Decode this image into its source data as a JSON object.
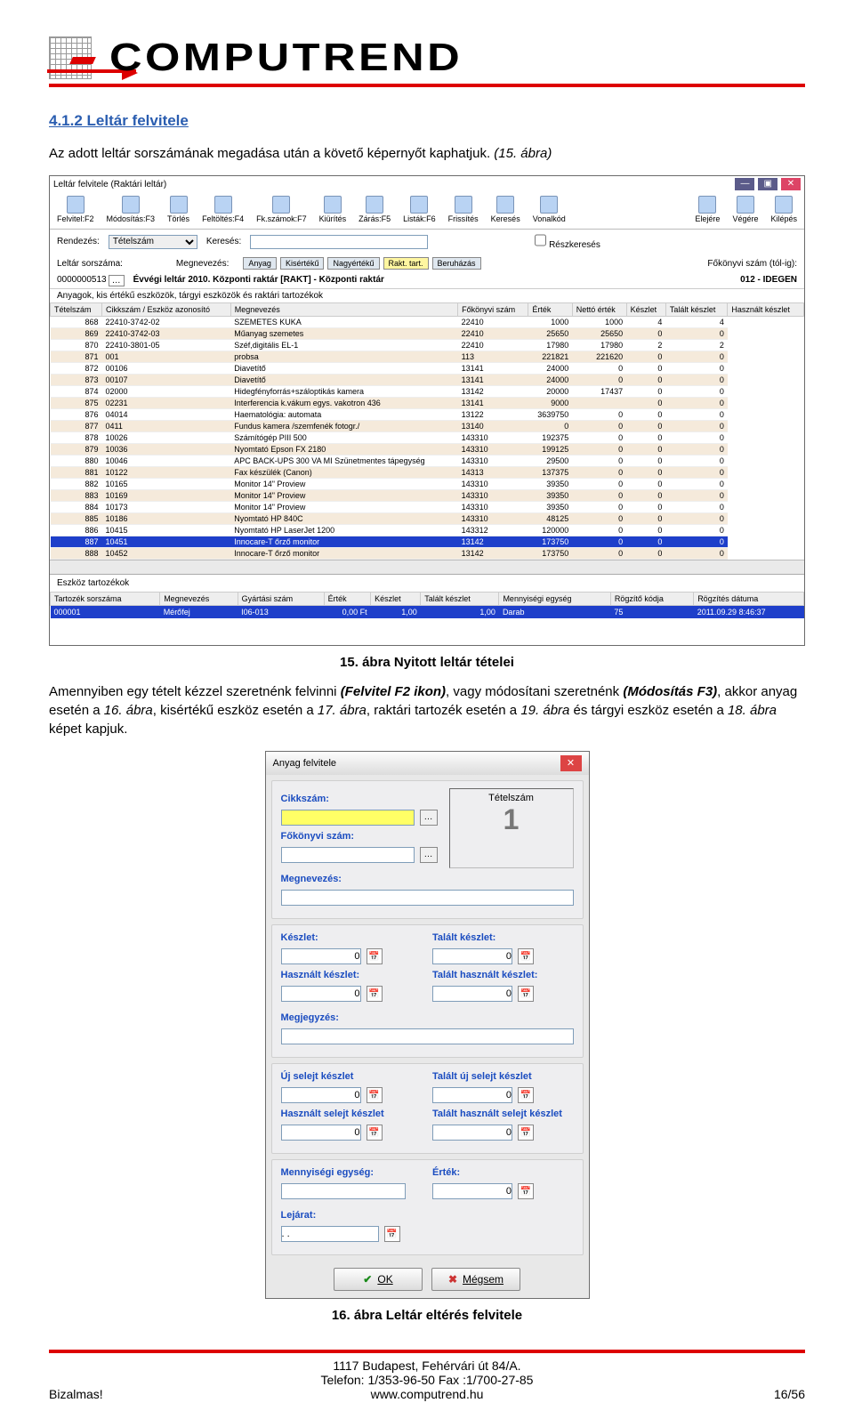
{
  "logo": {
    "brand": "COMPUTREND"
  },
  "doc": {
    "section_heading": "4.1.2  Leltár felvitele",
    "para1_before": "Az adott leltár sorszámának megadása után a követő képernyőt kaphatjuk. ",
    "para1_em": "(15. ábra)",
    "caption1": "15. ábra Nyitott leltár tételei",
    "para2": "Amennyiben egy tételt kézzel szeretnénk felvinni (Felvitel F2 ikon), vagy módosítani szeretnénk (Módosítás F3), akkor anyag esetén a 16. ábra, kisértékű eszköz esetén a 17. ábra, raktári tartozék esetén a 19. ábra és tárgyi eszköz esetén a 18. ábra képet kapjuk.",
    "caption2": "16. ábra Leltár eltérés felvitele"
  },
  "app1": {
    "title": "Leltár felvitele (Raktári leltár)",
    "toolbar": [
      "Felvitel:F2",
      "Módosítás:F3",
      "Törlés",
      "Feltöltés:F4",
      "Fk.számok:F7",
      "Kiürítés",
      "Zárás:F5",
      "Listák:F6",
      "Frissítés",
      "Keresés",
      "Vonalkód"
    ],
    "toolbarR": [
      "Elejére",
      "Végére",
      "Kilépés"
    ],
    "search": {
      "rend_lbl": "Rendezés:",
      "rend_val": "Tételszám",
      "keres_lbl": "Keresés:",
      "keres_val": "",
      "chk": "Részkeresés"
    },
    "info": {
      "sor_lbl": "Leltár sorszáma:",
      "sor_val": "0000000513",
      "megn_lbl": "Megnevezés:",
      "tabs": [
        "Anyag",
        "Kisértékű",
        "Nagyértékű",
        "Rakt. tart.",
        "Beruházás"
      ],
      "fokonyv_lbl": "Főkönyvi szám (tól-ig):",
      "desc": "Évvégi leltár 2010. Központi raktár  [RAKT] - Központi raktár",
      "right": "012 - IDEGEN"
    },
    "legend": "Anyagok, kis értékű eszközök, tárgyi eszközök és raktári tartozékok",
    "columns": [
      "Tételszám",
      "Cikkszám / Eszköz azonosító",
      "Megnevezés",
      "Főkönyvi szám",
      "Érték",
      "Nettó érték",
      "Készlet",
      "Talált készlet",
      "Használt készlet"
    ],
    "rows": [
      [
        "868",
        "22410-3742-02",
        "SZEMETES KUKA",
        "22410",
        "1000",
        "1000",
        "4",
        "4",
        false
      ],
      [
        "869",
        "22410-3742-03",
        "Műanyag szemetes",
        "22410",
        "25650",
        "25650",
        "0",
        "0",
        true
      ],
      [
        "870",
        "22410-3801-05",
        "Széf,digitális EL-1",
        "22410",
        "17980",
        "17980",
        "2",
        "2",
        false
      ],
      [
        "871",
        "001",
        "probsa",
        "113",
        "221821",
        "221620",
        "0",
        "0",
        true
      ],
      [
        "872",
        "00106",
        "Diavetítő",
        "13141",
        "24000",
        "0",
        "0",
        "0",
        false
      ],
      [
        "873",
        "00107",
        "Diavetítő",
        "13141",
        "24000",
        "0",
        "0",
        "0",
        true
      ],
      [
        "874",
        "02000",
        "Hidegfényforrás+száloptikás kamera",
        "13142",
        "20000",
        "17437",
        "0",
        "0",
        false
      ],
      [
        "875",
        "02231",
        "Interferencia k.vákum egys. vakotron 436",
        "13141",
        "9000",
        "",
        "0",
        "0",
        true
      ],
      [
        "876",
        "04014",
        "Haematológia: automata",
        "13122",
        "3639750",
        "0",
        "0",
        "0",
        false
      ],
      [
        "877",
        "0411",
        "Fundus kamera /szemfenék fotogr./",
        "13140",
        "0",
        "0",
        "0",
        "0",
        true
      ],
      [
        "878",
        "10026",
        "Számítógép PIII 500",
        "143310",
        "192375",
        "0",
        "0",
        "0",
        false
      ],
      [
        "879",
        "10036",
        "Nyomtató Epson FX 2180",
        "143310",
        "199125",
        "0",
        "0",
        "0",
        true
      ],
      [
        "880",
        "10046",
        "APC BACK-UPS 300 VA MI Szünetmentes tápegység",
        "143310",
        "29500",
        "0",
        "0",
        "0",
        false
      ],
      [
        "881",
        "10122",
        "Fax készülék (Canon)",
        "14313",
        "137375",
        "0",
        "0",
        "0",
        true
      ],
      [
        "882",
        "10165",
        "Monitor 14\" Proview",
        "143310",
        "39350",
        "0",
        "0",
        "0",
        false
      ],
      [
        "883",
        "10169",
        "Monitor 14\" Proview",
        "143310",
        "39350",
        "0",
        "0",
        "0",
        true
      ],
      [
        "884",
        "10173",
        "Monitor 14\" Proview",
        "143310",
        "39350",
        "0",
        "0",
        "0",
        false
      ],
      [
        "885",
        "10186",
        "Nyomtató HP 840C",
        "143310",
        "48125",
        "0",
        "0",
        "0",
        true
      ],
      [
        "886",
        "10415",
        "Nyomtató HP LaserJet 1200",
        "143312",
        "120000",
        "0",
        "0",
        "0",
        false
      ],
      [
        "887",
        "10451",
        "Innocare-T őrző monitor",
        "13142",
        "173750",
        "0",
        "0",
        "0",
        "sel"
      ],
      [
        "888",
        "10452",
        "Innocare-T őrző monitor",
        "13142",
        "173750",
        "0",
        "0",
        "0",
        true
      ]
    ],
    "sub_legend": "Eszköz tartozékok",
    "sub_cols": [
      "Tartozék sorszáma",
      "Megnevezés",
      "Gyártási szám",
      "Érték",
      "Készlet",
      "Talált készlet",
      "Mennyiségi egység",
      "Rögzítő kódja",
      "Rögzítés dátuma"
    ],
    "sub_row": [
      "000001",
      "Mérőfej",
      "I06-013",
      "0,00 Ft",
      "1,00",
      "1,00",
      "Darab",
      "75",
      "2011.09.29 8:46:37"
    ]
  },
  "dlg": {
    "title": "Anyag felvitele",
    "cikkszam_lbl": "Cikkszám:",
    "fokonyvi_lbl": "Főkönyvi szám:",
    "megn_lbl": "Megnevezés:",
    "tetelszam_lbl": "Tételszám",
    "tetelszam_val": "1",
    "keszlet_lbl": "Készlet:",
    "keszlet_val": "0",
    "talalt_lbl": "Talált készlet:",
    "talalt_val": "0",
    "haszn_lbl": "Használt készlet:",
    "haszn_val": "0",
    "talhaszn_lbl": "Talált használt készlet:",
    "talhaszn_val": "0",
    "megj_lbl": "Megjegyzés:",
    "megj_val": "",
    "ujsel_lbl": "Új selejt készlet",
    "ujsel_val": "0",
    "talujsel_lbl": "Talált új selejt készlet",
    "talujsel_val": "0",
    "haszsel_lbl": "Használt selejt készlet",
    "haszsel_val": "0",
    "talhaszsel_lbl": "Talált használt selejt készlet",
    "talhaszsel_val": "0",
    "menny_lbl": "Mennyiségi egység:",
    "menny_val": "",
    "ertek_lbl": "Érték:",
    "ertek_val": "0",
    "lejarat_lbl": "Lejárat:",
    "lejarat_val": ". .",
    "ok": "OK",
    "cancel": "Mégsem"
  },
  "footer": {
    "addr": "1117 Budapest, Fehérvári út 84/A.",
    "tel": "Telefon: 1/353-96-50   Fax :1/700-27-85",
    "web": "www.computrend.hu",
    "left": "Bizalmas!",
    "right": "16/56"
  }
}
